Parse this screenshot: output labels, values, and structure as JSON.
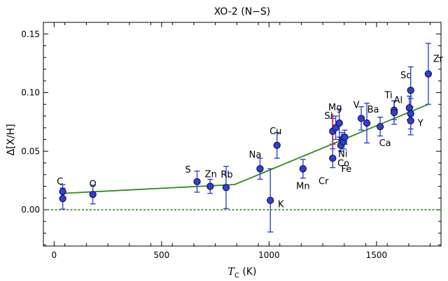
{
  "chart_data": {
    "type": "scatter",
    "title": "XO-2 (N−S)",
    "xlabel_main": "T",
    "xlabel_sub": "C",
    "xlabel_unit": " (K)",
    "ylabel": "Δ[X/H]",
    "xlim": [
      -50,
      1800
    ],
    "ylim": [
      -0.031,
      0.16
    ],
    "xticks": [
      0,
      500,
      1000,
      1500
    ],
    "xtick_labels": [
      "0",
      "500",
      "1000",
      "1500"
    ],
    "yticks": [
      0.0,
      0.05,
      0.1,
      0.15
    ],
    "ytick_labels": [
      "0.00",
      "0.05",
      "0.10",
      "0.15"
    ],
    "grid": false,
    "colors": {
      "point": "#2f3fd8",
      "error": "#3344cc",
      "fit": "#2e8b1f",
      "zero": "#2e8b1f",
      "alt_error": "#c83246"
    },
    "zero_line": 0.0,
    "fit_line": {
      "x": [
        40,
        840,
        1740
      ],
      "y": [
        0.014,
        0.0215,
        0.09
      ]
    },
    "elements": [
      {
        "label": "C",
        "x": 40,
        "y": 0.0155,
        "err": 0.006
      },
      {
        "label": "",
        "x": 40,
        "y": 0.0095,
        "err": 0.009
      },
      {
        "label": "O",
        "x": 180,
        "y": 0.013,
        "err": 0.008
      },
      {
        "label": "S",
        "x": 665,
        "y": 0.024,
        "err": 0.009
      },
      {
        "label": "Zn",
        "x": 726,
        "y": 0.02,
        "err": 0.006
      },
      {
        "label": "Rb",
        "x": 800,
        "y": 0.019,
        "err": 0.018
      },
      {
        "label": "Na",
        "x": 958,
        "y": 0.035,
        "err": 0.009
      },
      {
        "label": "K",
        "x": 1006,
        "y": 0.008,
        "err": 0.027
      },
      {
        "label": "Cu",
        "x": 1037,
        "y": 0.055,
        "err": 0.011
      },
      {
        "label": "Mn",
        "x": 1158,
        "y": 0.035,
        "err": 0.008
      },
      {
        "label": "Cr",
        "x": 1296,
        "y": 0.044,
        "err": 0.008
      },
      {
        "label": "Si",
        "x": 1296,
        "y": 0.067,
        "err": 0.011,
        "alt_err": 0.015
      },
      {
        "label": "",
        "x": 1310,
        "y": 0.07,
        "err": 0.01
      },
      {
        "label": "Mg",
        "x": 1327,
        "y": 0.074,
        "err": 0.012
      },
      {
        "label": "Fe",
        "x": 1334,
        "y": 0.055,
        "err": 0.005
      },
      {
        "label": "Ni",
        "x": 1340,
        "y": 0.06,
        "err": 0.006
      },
      {
        "label": "Co",
        "x": 1346,
        "y": 0.058,
        "err": 0.006
      },
      {
        "label": "",
        "x": 1352,
        "y": 0.062,
        "err": 0.006
      },
      {
        "label": "V",
        "x": 1429,
        "y": 0.078,
        "err": 0.01
      },
      {
        "label": "Ba",
        "x": 1455,
        "y": 0.074,
        "err": 0.017
      },
      {
        "label": "Ca",
        "x": 1517,
        "y": 0.071,
        "err": 0.008
      },
      {
        "label": "Ti",
        "x": 1582,
        "y": 0.085,
        "err": 0.008,
        "alt_err": 0.004
      },
      {
        "label": "",
        "x": 1582,
        "y": 0.083,
        "err": 0.01
      },
      {
        "label": "Sc",
        "x": 1659,
        "y": 0.102,
        "err": 0.02
      },
      {
        "label": "Al",
        "x": 1653,
        "y": 0.087,
        "err": 0.01,
        "alt_err": 0.004
      },
      {
        "label": "",
        "x": 1659,
        "y": 0.082,
        "err": 0.013
      },
      {
        "label": "Y",
        "x": 1659,
        "y": 0.076,
        "err": 0.012
      },
      {
        "label": "Zr",
        "x": 1741,
        "y": 0.116,
        "err": 0.026
      }
    ]
  }
}
